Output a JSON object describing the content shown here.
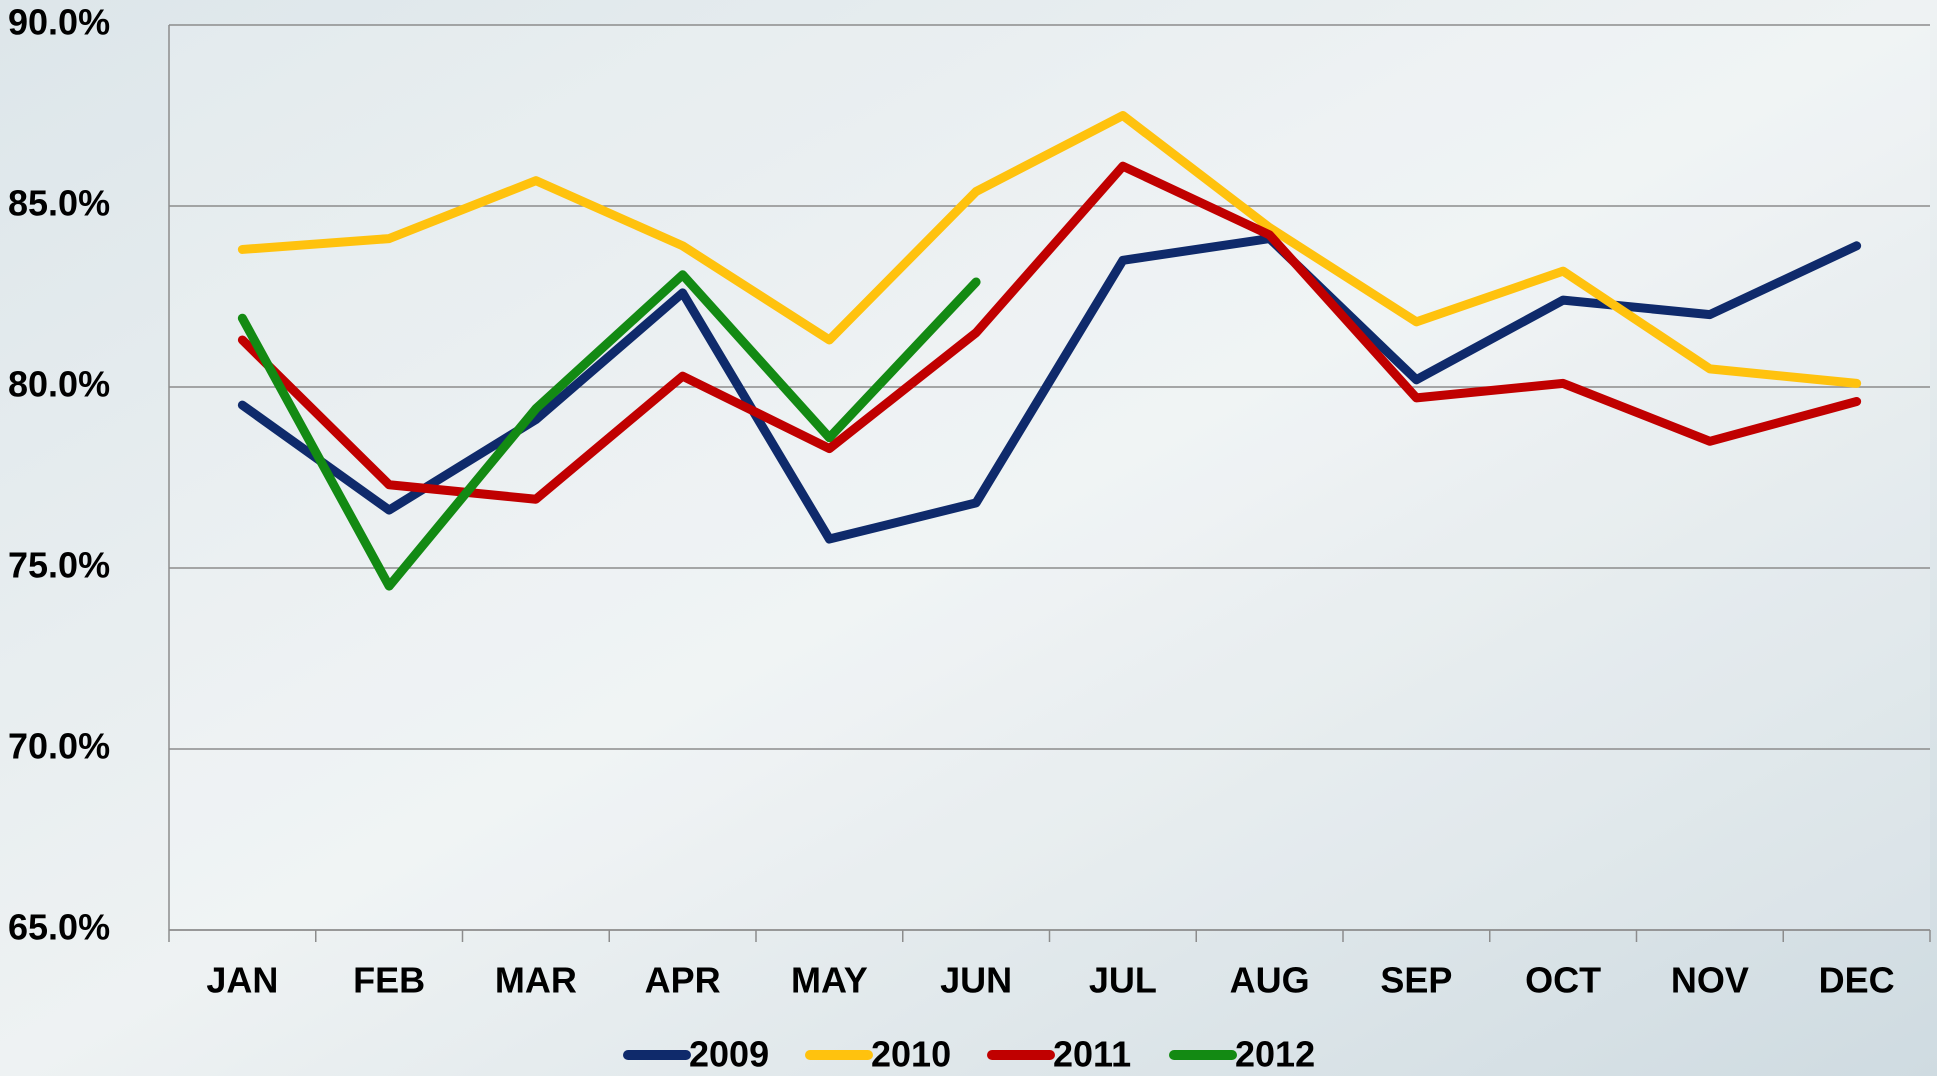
{
  "chart_data": {
    "type": "line",
    "categories": [
      "JAN",
      "FEB",
      "MAR",
      "APR",
      "MAY",
      "JUN",
      "JUL",
      "AUG",
      "SEP",
      "OCT",
      "NOV",
      "DEC"
    ],
    "series": [
      {
        "name": "2009",
        "color": "#0f2a6b",
        "values": [
          79.5,
          76.6,
          79.1,
          82.6,
          75.8,
          76.8,
          83.5,
          84.1,
          80.2,
          82.4,
          82.0,
          83.9
        ]
      },
      {
        "name": "2010",
        "color": "#ffc20e",
        "values": [
          83.8,
          84.1,
          85.7,
          83.9,
          81.3,
          85.4,
          87.5,
          84.4,
          81.8,
          83.2,
          80.5,
          80.1
        ]
      },
      {
        "name": "2011",
        "color": "#c00000",
        "values": [
          81.3,
          77.3,
          76.9,
          80.3,
          78.3,
          81.5,
          86.1,
          84.2,
          79.7,
          80.1,
          78.5,
          79.6
        ]
      },
      {
        "name": "2012",
        "color": "#138a13",
        "values": [
          81.9,
          74.5,
          79.4,
          83.1,
          78.6,
          82.9,
          null,
          null,
          null,
          null,
          null,
          null
        ]
      }
    ],
    "ylim": [
      65,
      90
    ],
    "yticks": [
      {
        "value": 65,
        "label": "65.0%"
      },
      {
        "value": 70,
        "label": "70.0%"
      },
      {
        "value": 75,
        "label": "75.0%"
      },
      {
        "value": 80,
        "label": "80.0%"
      },
      {
        "value": 85,
        "label": "85.0%"
      },
      {
        "value": 90,
        "label": "90.0%"
      }
    ],
    "grid": true,
    "legend": "bottom"
  }
}
